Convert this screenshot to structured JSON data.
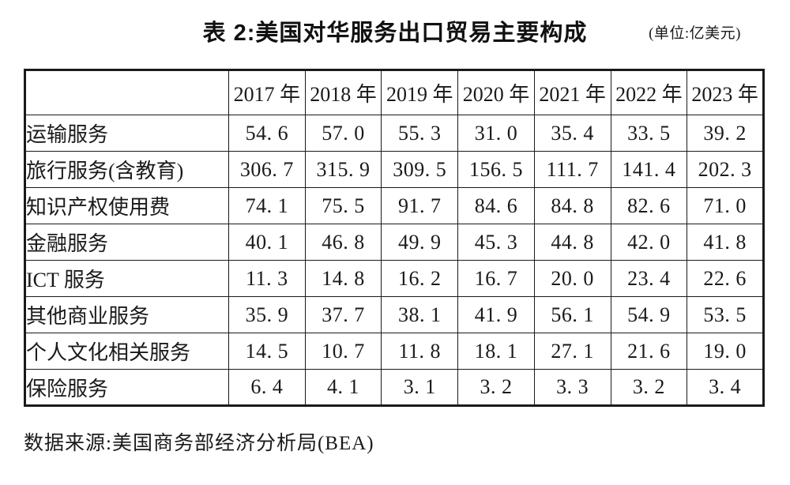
{
  "title": {
    "text": "表 2:美国对华服务出口贸易主要构成",
    "unit": "(单位:亿美元)"
  },
  "table": {
    "corner_label": "",
    "columns": [
      "2017 年",
      "2018 年",
      "2019 年",
      "2020 年",
      "2021 年",
      "2022 年",
      "2023 年"
    ],
    "rows": [
      {
        "label": "运输服务",
        "values": [
          "54. 6",
          "57. 0",
          "55. 3",
          "31. 0",
          "35. 4",
          "33. 5",
          "39. 2"
        ]
      },
      {
        "label": "旅行服务(含教育)",
        "values": [
          "306. 7",
          "315. 9",
          "309. 5",
          "156. 5",
          "111. 7",
          "141. 4",
          "202. 3"
        ]
      },
      {
        "label": "知识产权使用费",
        "values": [
          "74. 1",
          "75. 5",
          "91. 7",
          "84. 6",
          "84. 8",
          "82. 6",
          "71. 0"
        ]
      },
      {
        "label": "金融服务",
        "values": [
          "40. 1",
          "46. 8",
          "49. 9",
          "45. 3",
          "44. 8",
          "42. 0",
          "41. 8"
        ]
      },
      {
        "label": "ICT 服务",
        "values": [
          "11. 3",
          "14. 8",
          "16. 2",
          "16. 7",
          "20. 0",
          "23. 4",
          "22. 6"
        ]
      },
      {
        "label": "其他商业服务",
        "values": [
          "35. 9",
          "37. 7",
          "38. 1",
          "41. 9",
          "56. 1",
          "54. 9",
          "53. 5"
        ]
      },
      {
        "label": "个人文化相关服务",
        "values": [
          "14. 5",
          "10. 7",
          "11. 8",
          "18. 1",
          "27. 1",
          "21. 6",
          "19. 0"
        ]
      },
      {
        "label": "保险服务",
        "values": [
          "6. 4",
          "4. 1",
          "3. 1",
          "3. 2",
          "3. 3",
          "3. 2",
          "3. 4"
        ]
      }
    ]
  },
  "footer": {
    "source": "数据来源:美国商务部经济分析局(BEA)"
  },
  "chart_data": {
    "type": "table",
    "title": "表 2:美国对华服务出口贸易主要构成",
    "unit": "亿美元",
    "categories": [
      "2017",
      "2018",
      "2019",
      "2020",
      "2021",
      "2022",
      "2023"
    ],
    "series": [
      {
        "name": "运输服务",
        "values": [
          54.6,
          57.0,
          55.3,
          31.0,
          35.4,
          33.5,
          39.2
        ]
      },
      {
        "name": "旅行服务(含教育)",
        "values": [
          306.7,
          315.9,
          309.5,
          156.5,
          111.7,
          141.4,
          202.3
        ]
      },
      {
        "name": "知识产权使用费",
        "values": [
          74.1,
          75.5,
          91.7,
          84.6,
          84.8,
          82.6,
          71.0
        ]
      },
      {
        "name": "金融服务",
        "values": [
          40.1,
          46.8,
          49.9,
          45.3,
          44.8,
          42.0,
          41.8
        ]
      },
      {
        "name": "ICT 服务",
        "values": [
          11.3,
          14.8,
          16.2,
          16.7,
          20.0,
          23.4,
          22.6
        ]
      },
      {
        "name": "其他商业服务",
        "values": [
          35.9,
          37.7,
          38.1,
          41.9,
          56.1,
          54.9,
          53.5
        ]
      },
      {
        "name": "个人文化相关服务",
        "values": [
          14.5,
          10.7,
          11.8,
          18.1,
          27.1,
          21.6,
          19.0
        ]
      },
      {
        "name": "保险服务",
        "values": [
          6.4,
          4.1,
          3.1,
          3.2,
          3.3,
          3.2,
          3.4
        ]
      }
    ],
    "source": "美国商务部经济分析局(BEA)"
  }
}
